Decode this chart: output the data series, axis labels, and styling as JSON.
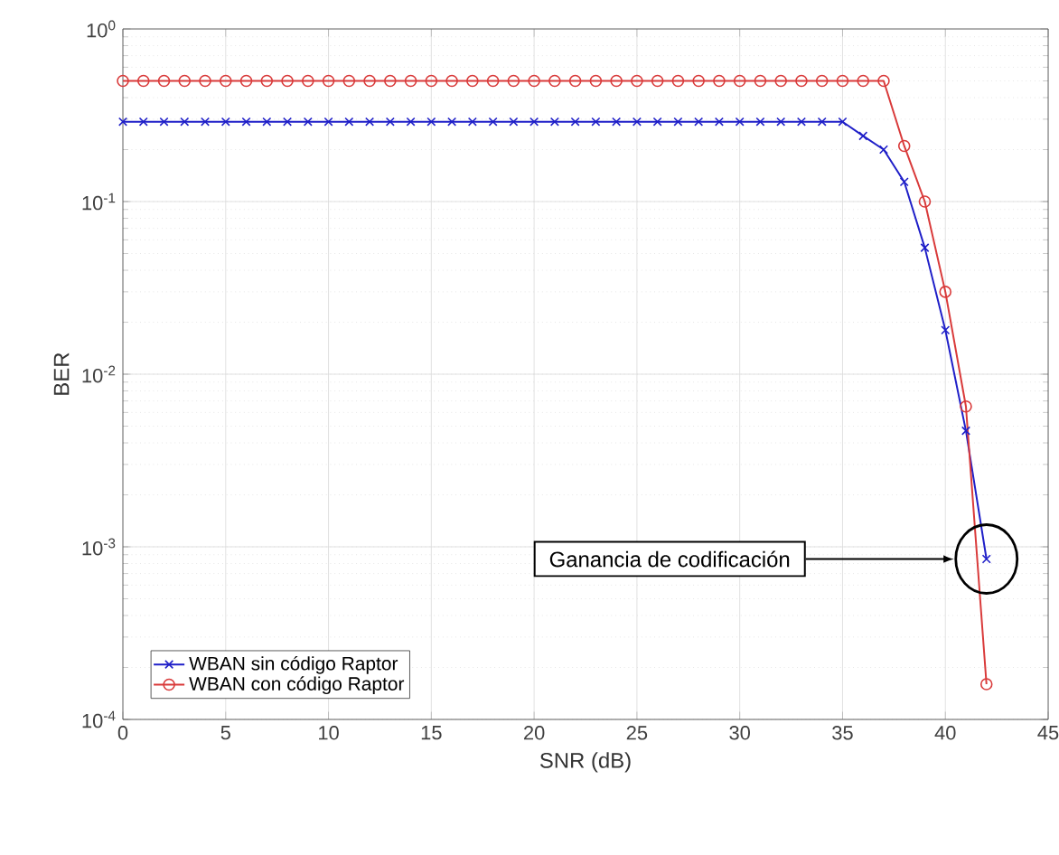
{
  "chart_data": {
    "type": "line",
    "xlabel": "SNR (dB)",
    "ylabel": "BER",
    "log": "y",
    "grid": true,
    "legend": "bottom left",
    "x": [
      0,
      1,
      2,
      3,
      4,
      5,
      6,
      7,
      8,
      9,
      10,
      11,
      12,
      13,
      14,
      15,
      16,
      17,
      18,
      19,
      20,
      21,
      22,
      23,
      24,
      25,
      26,
      27,
      28,
      29,
      30,
      31,
      32,
      33,
      34,
      35,
      36,
      37,
      38,
      39,
      40,
      41,
      42
    ],
    "xlim": [
      0,
      45
    ],
    "xticks": [
      0,
      5,
      10,
      15,
      20,
      25,
      30,
      35,
      40,
      45
    ],
    "ylim": [
      0.0001,
      1
    ],
    "yticks": [
      {
        "value": 0.0001,
        "label": "10$^{-4}$"
      },
      {
        "value": 0.001,
        "label": "10$^{-3}$"
      },
      {
        "value": 0.01,
        "label": "10$^{-2}$"
      },
      {
        "value": 0.1,
        "label": "10$^{-1}$"
      },
      {
        "value": 1,
        "label": "10$^{0}$"
      }
    ],
    "series": [
      {
        "name": "WBAN sin código Raptor",
        "color": "#1f1fc8",
        "marker": "cross",
        "values": [
          0.29,
          0.29,
          0.29,
          0.29,
          0.29,
          0.29,
          0.29,
          0.29,
          0.29,
          0.29,
          0.29,
          0.29,
          0.29,
          0.29,
          0.29,
          0.29,
          0.29,
          0.29,
          0.29,
          0.29,
          0.29,
          0.29,
          0.29,
          0.29,
          0.29,
          0.29,
          0.29,
          0.29,
          0.29,
          0.29,
          0.29,
          0.29,
          0.29,
          0.29,
          0.29,
          0.29,
          0.24,
          0.2,
          0.13,
          0.054,
          0.018,
          0.0047,
          0.00085
        ]
      },
      {
        "name": "WBAN con código Raptor",
        "color": "#d93a3a",
        "marker": "circle",
        "values": [
          0.5,
          0.5,
          0.5,
          0.5,
          0.5,
          0.5,
          0.5,
          0.5,
          0.5,
          0.5,
          0.5,
          0.5,
          0.5,
          0.5,
          0.5,
          0.5,
          0.5,
          0.5,
          0.5,
          0.5,
          0.5,
          0.5,
          0.5,
          0.5,
          0.5,
          0.5,
          0.5,
          0.5,
          0.5,
          0.5,
          0.5,
          0.5,
          0.5,
          0.5,
          0.5,
          0.5,
          0.5,
          0.5,
          0.21,
          0.1,
          0.03,
          0.0065,
          0.00016
        ]
      }
    ],
    "annotations": [
      "Ganancia de codificación"
    ]
  }
}
